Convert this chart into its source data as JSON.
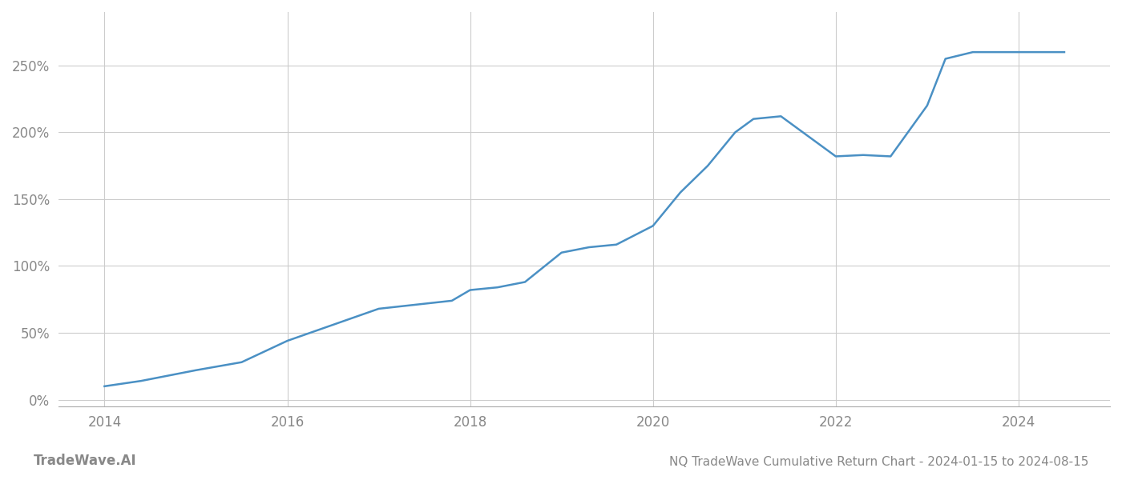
{
  "title": "NQ TradeWave Cumulative Return Chart - 2024-01-15 to 2024-08-15",
  "watermark": "TradeWave.AI",
  "line_color": "#4a90c4",
  "line_width": 1.8,
  "background_color": "#ffffff",
  "grid_color": "#cccccc",
  "x_years": [
    2014.0,
    2014.4,
    2015.0,
    2015.5,
    2016.0,
    2016.5,
    2017.0,
    2017.4,
    2017.8,
    2018.0,
    2018.3,
    2018.6,
    2019.0,
    2019.3,
    2019.6,
    2020.0,
    2020.3,
    2020.6,
    2020.9,
    2021.1,
    2021.4,
    2021.7,
    2022.0,
    2022.3,
    2022.6,
    2023.0,
    2023.2,
    2023.5,
    2024.0,
    2024.5
  ],
  "y_values": [
    10,
    14,
    22,
    28,
    44,
    56,
    68,
    71,
    74,
    82,
    84,
    88,
    110,
    114,
    116,
    130,
    155,
    175,
    200,
    210,
    212,
    197,
    182,
    183,
    182,
    220,
    255,
    260,
    260,
    260
  ],
  "xlim": [
    2013.5,
    2025.0
  ],
  "ylim": [
    -5,
    290
  ],
  "yticks": [
    0,
    50,
    100,
    150,
    200,
    250
  ],
  "ytick_labels": [
    "0%",
    "50%",
    "100%",
    "150%",
    "200%",
    "250%"
  ],
  "xticks": [
    2014,
    2016,
    2018,
    2020,
    2022,
    2024
  ],
  "xtick_labels": [
    "2014",
    "2016",
    "2018",
    "2020",
    "2022",
    "2024"
  ],
  "tick_color": "#888888",
  "label_fontsize": 12,
  "title_fontsize": 11,
  "watermark_fontsize": 12
}
